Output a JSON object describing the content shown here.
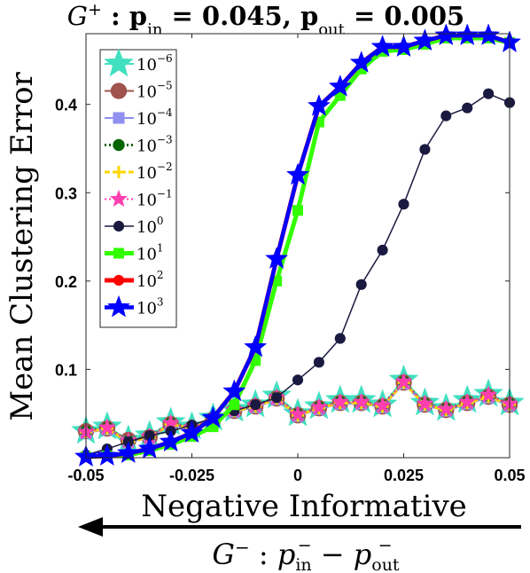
{
  "chart_data": {
    "type": "line",
    "title": {
      "prefix": "G",
      "prefix_sup": "+",
      "sep": " : ",
      "p1": "p",
      "p1_sub": "in",
      "p1_val": " = 0.045, ",
      "p2": "p",
      "p2_sub": "out",
      "p2_val": " = 0.005"
    },
    "ylabel": "Mean Clustering Error",
    "xlabel": "Negative Informative",
    "xlabel2": {
      "prefix": "G",
      "prefix_sup": "−",
      "sep": " : ",
      "a": "p",
      "a_sub": "in",
      "a_sup": "−",
      "minus": " − ",
      "b": "p",
      "b_sub": "out",
      "b_sup": "−"
    },
    "xlim": [
      -0.05,
      0.05
    ],
    "ylim": [
      0,
      0.48
    ],
    "xticks": [
      -0.05,
      -0.025,
      0,
      0.025,
      0.05
    ],
    "xtick_labels": [
      "-0.05",
      "-0.025",
      "0",
      "0.025",
      "0.05"
    ],
    "yticks": [
      0.1,
      0.2,
      0.3,
      0.4
    ],
    "ytick_labels": [
      "0.1",
      "0.2",
      "0.3",
      "0.4"
    ],
    "grid": false,
    "legend_position": "top-left",
    "x": [
      -0.05,
      -0.045,
      -0.04,
      -0.035,
      -0.03,
      -0.025,
      -0.02,
      -0.015,
      -0.01,
      -0.005,
      0,
      0.005,
      0.01,
      0.015,
      0.02,
      0.025,
      0.03,
      0.035,
      0.04,
      0.045,
      0.05
    ],
    "series": [
      {
        "name_base": "10",
        "name_exp": "−6",
        "color": "#40e0c0",
        "marker": "star",
        "values": [
          0.03,
          0.035,
          0.02,
          0.025,
          0.04,
          0.035,
          0.045,
          0.055,
          0.06,
          0.07,
          0.05,
          0.058,
          0.065,
          0.065,
          0.06,
          0.088,
          0.062,
          0.056,
          0.065,
          0.072,
          0.062
        ]
      },
      {
        "name_base": "10",
        "name_exp": "−5",
        "color": "#a0524d",
        "marker": "circle",
        "values": [
          0.03,
          0.033,
          0.02,
          0.023,
          0.038,
          0.033,
          0.043,
          0.053,
          0.058,
          0.067,
          0.048,
          0.056,
          0.062,
          0.062,
          0.058,
          0.085,
          0.06,
          0.054,
          0.062,
          0.069,
          0.06
        ]
      },
      {
        "name_base": "10",
        "name_exp": "−4",
        "color": "#9090f0",
        "marker": "square",
        "values": [
          0.028,
          0.032,
          0.018,
          0.022,
          0.037,
          0.032,
          0.042,
          0.052,
          0.057,
          0.066,
          0.047,
          0.055,
          0.061,
          0.061,
          0.057,
          0.084,
          0.059,
          0.053,
          0.061,
          0.068,
          0.059
        ]
      },
      {
        "name_base": "10",
        "name_exp": "−3",
        "color": "#006400",
        "marker": "circle",
        "values": [
          0.03,
          0.034,
          0.019,
          0.024,
          0.039,
          0.034,
          0.044,
          0.054,
          0.059,
          0.068,
          0.049,
          0.057,
          0.063,
          0.063,
          0.059,
          0.086,
          0.061,
          0.055,
          0.063,
          0.07,
          0.061
        ]
      },
      {
        "name_base": "10",
        "name_exp": "−2",
        "color": "#ffd700",
        "marker": "plus",
        "values": [
          0.029,
          0.033,
          0.018,
          0.023,
          0.038,
          0.033,
          0.043,
          0.053,
          0.058,
          0.067,
          0.048,
          0.056,
          0.062,
          0.062,
          0.058,
          0.085,
          0.06,
          0.054,
          0.062,
          0.069,
          0.06
        ]
      },
      {
        "name_base": "10",
        "name_exp": "−1",
        "color": "#ff3fb0",
        "marker": "star",
        "values": [
          0.029,
          0.034,
          0.019,
          0.024,
          0.039,
          0.034,
          0.044,
          0.054,
          0.059,
          0.068,
          0.049,
          0.057,
          0.063,
          0.063,
          0.059,
          0.086,
          0.061,
          0.055,
          0.063,
          0.071,
          0.061
        ]
      },
      {
        "name_base": "10",
        "name_exp": "0",
        "color": "#1a1a40",
        "marker": "circle",
        "values": [
          0.003,
          0.01,
          0.018,
          0.025,
          0.03,
          0.037,
          0.045,
          0.053,
          0.06,
          0.068,
          0.088,
          0.108,
          0.135,
          0.196,
          0.235,
          0.287,
          0.349,
          0.387,
          0.396,
          0.412,
          0.402
        ]
      },
      {
        "name_base": "10",
        "name_exp": "1",
        "color": "#33ff00",
        "marker": "square",
        "values": [
          0.001,
          0.002,
          0.003,
          0.008,
          0.015,
          0.024,
          0.035,
          0.06,
          0.11,
          0.2,
          0.28,
          0.38,
          0.41,
          0.44,
          0.46,
          0.462,
          0.468,
          0.475,
          0.475,
          0.475,
          0.47
        ]
      },
      {
        "name_base": "10",
        "name_exp": "2",
        "color": "#ff0000",
        "marker": "circle",
        "values": [
          0.001,
          0.002,
          0.005,
          0.01,
          0.018,
          0.028,
          0.045,
          0.075,
          0.125,
          0.225,
          0.32,
          0.398,
          0.42,
          0.447,
          0.465,
          0.465,
          0.472,
          0.478,
          0.478,
          0.478,
          0.47
        ]
      },
      {
        "name_base": "10",
        "name_exp": "3",
        "color": "#0000ff",
        "marker": "star",
        "values": [
          0.001,
          0.002,
          0.005,
          0.01,
          0.018,
          0.028,
          0.045,
          0.075,
          0.125,
          0.225,
          0.32,
          0.398,
          0.42,
          0.447,
          0.465,
          0.465,
          0.472,
          0.478,
          0.478,
          0.478,
          0.47
        ]
      }
    ]
  }
}
